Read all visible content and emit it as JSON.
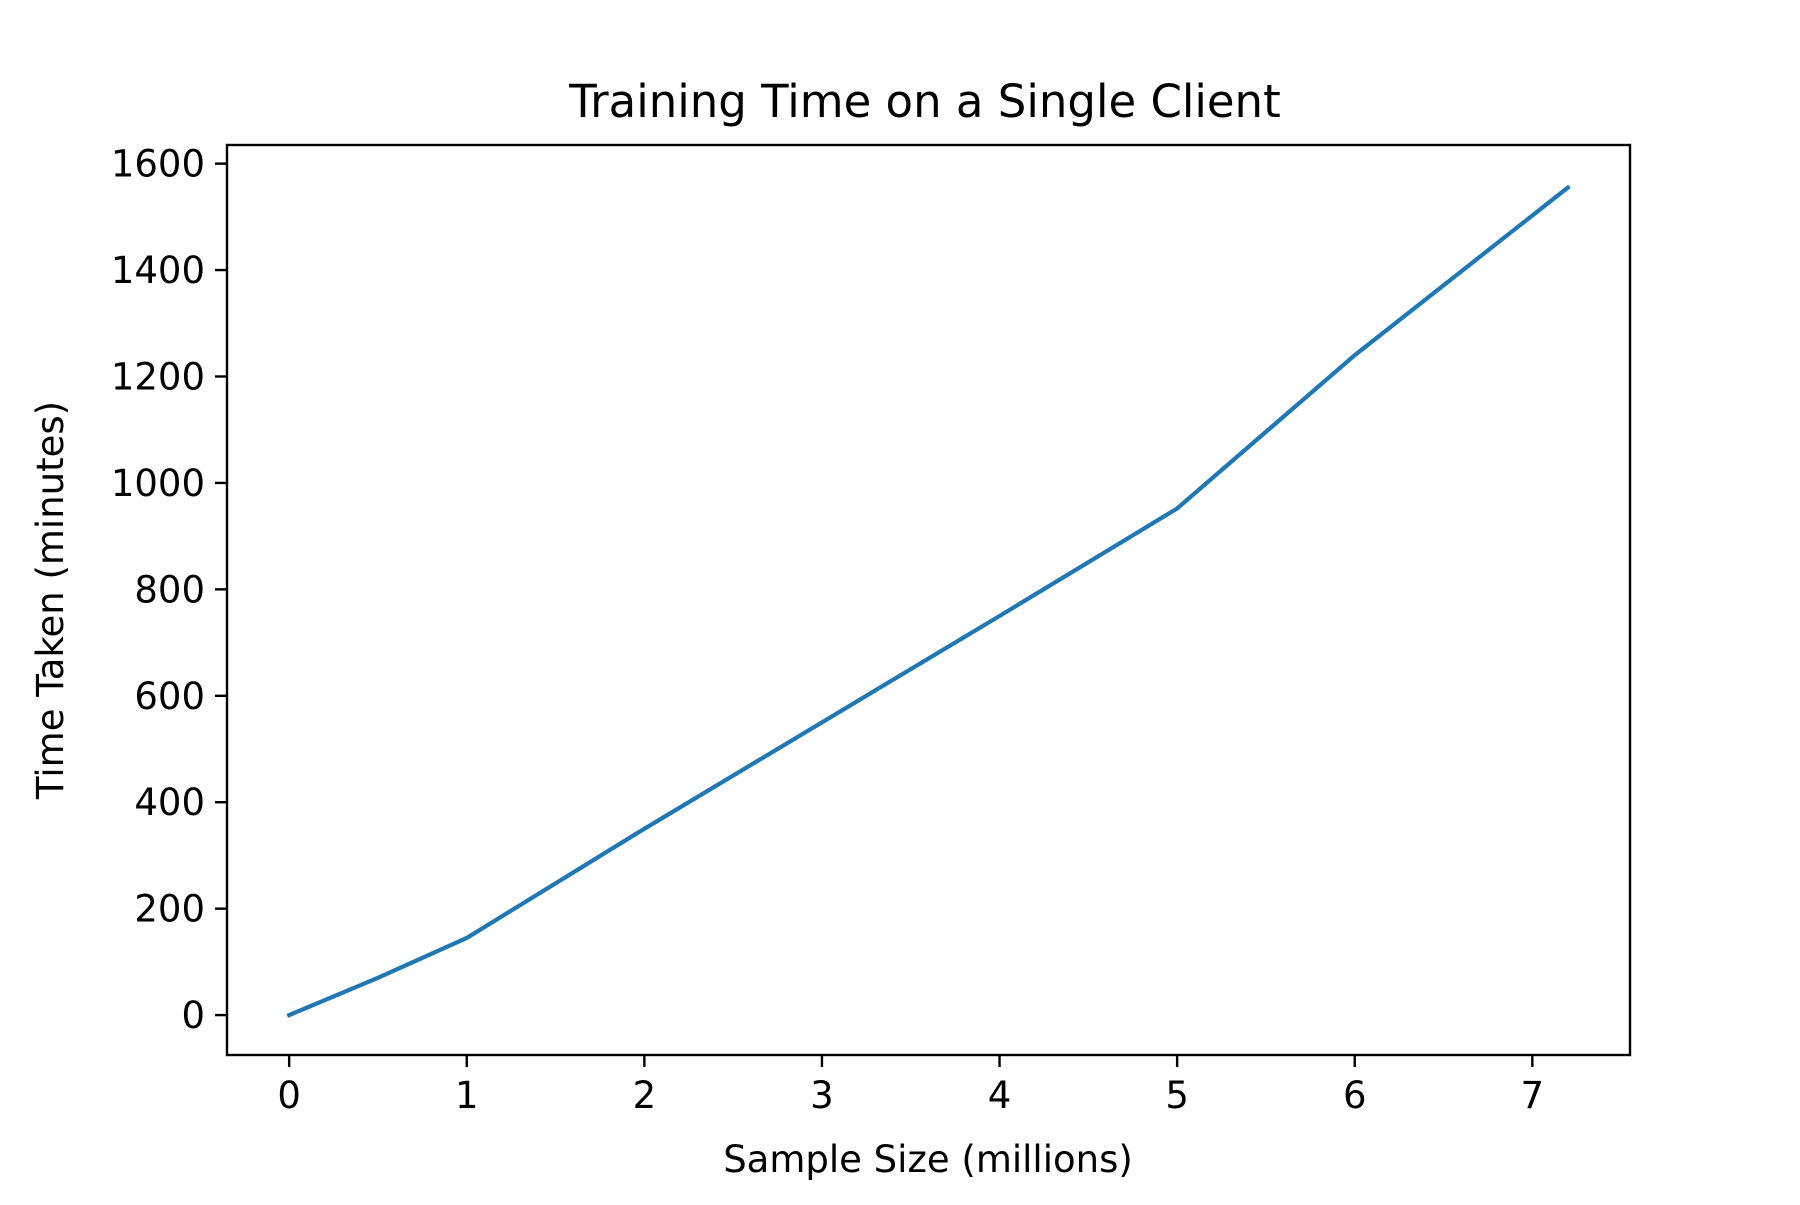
{
  "chart_data": {
    "type": "line",
    "title": "Training Time on a Single Client",
    "xlabel": "Sample Size (millions)",
    "ylabel": "Time Taken (minutes)",
    "xlim": [
      -0.35,
      7.55
    ],
    "ylim": [
      -75,
      1635
    ],
    "xticks": [
      0,
      1,
      2,
      3,
      4,
      5,
      6,
      7
    ],
    "yticks": [
      0,
      200,
      400,
      600,
      800,
      1000,
      1200,
      1400,
      1600
    ],
    "grid": false,
    "legend": "none",
    "series": [
      {
        "color": "#1f77b4",
        "x": [
          0,
          0.5,
          1,
          2,
          3,
          4,
          5,
          6,
          7.2
        ],
        "y": [
          0,
          70,
          145,
          350,
          550,
          750,
          952,
          1240,
          1555
        ]
      }
    ]
  }
}
